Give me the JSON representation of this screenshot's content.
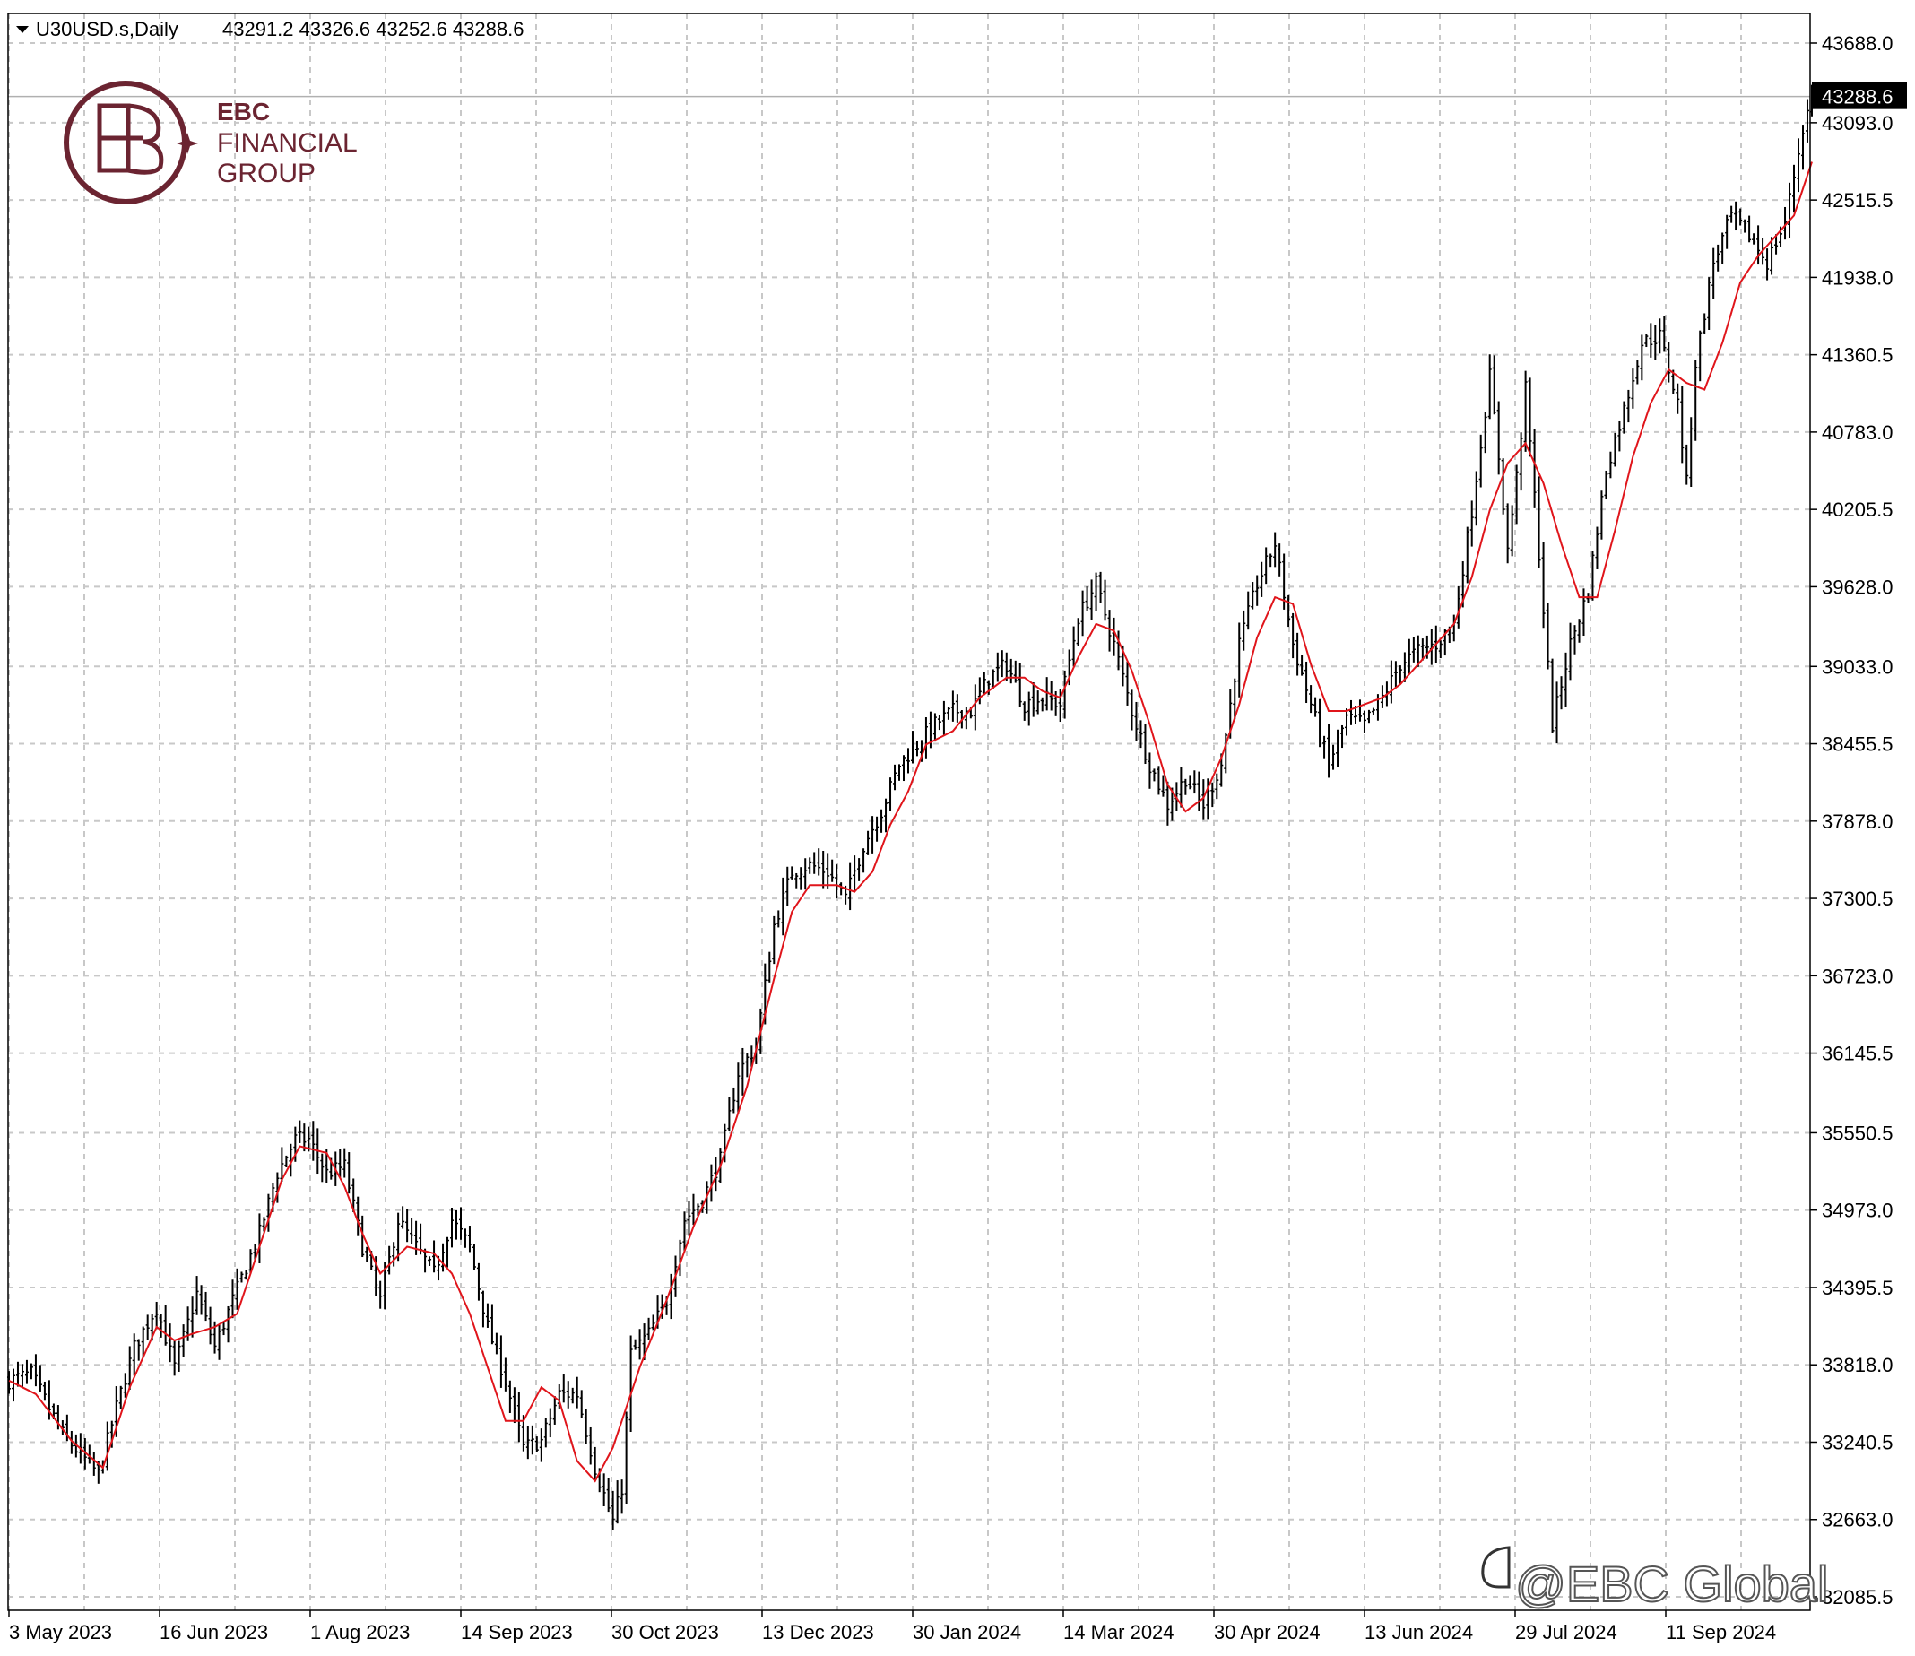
{
  "header": {
    "symbol": "U30USD.s,Daily",
    "ohlc": "43291.2 43326.6 43252.6 43288.6"
  },
  "logo": {
    "line1": "EBC",
    "line2": "FINANCIAL",
    "line3": "GROUP",
    "color": "#6b2431"
  },
  "watermark": "@EBC Global",
  "colors": {
    "bars": "#000000",
    "ma_line": "#e0151b",
    "grid": "#c8c8c8",
    "price_label_bg": "#000000",
    "price_label_text": "#ffffff"
  },
  "chart_data": {
    "type": "line",
    "chart_style": "ohlc-bars",
    "current_price": 43288.6,
    "current_price_label": "43288.6",
    "y_ticks": [
      "43688.0",
      "43093.0",
      "42515.5",
      "41938.0",
      "41360.5",
      "40783.0",
      "40205.5",
      "39628.0",
      "39033.0",
      "38455.5",
      "37878.0",
      "37300.5",
      "36723.0",
      "36145.5",
      "35550.5",
      "34973.0",
      "34395.5",
      "33818.0",
      "33240.5",
      "32663.0",
      "32085.5"
    ],
    "x_ticks": [
      "3 May 2023",
      "16 Jun 2023",
      "1 Aug 2023",
      "14 Sep 2023",
      "30 Oct 2023",
      "13 Dec 2023",
      "30 Jan 2024",
      "14 Mar 2024",
      "30 Apr 2024",
      "13 Jun 2024",
      "29 Jul 2024",
      "11 Sep 2024"
    ],
    "grid": true,
    "price_anchors": [
      [
        0,
        33700
      ],
      [
        5,
        33750
      ],
      [
        12,
        33300
      ],
      [
        16,
        33150
      ],
      [
        20,
        33000
      ],
      [
        24,
        33500
      ],
      [
        28,
        33950
      ],
      [
        33,
        34250
      ],
      [
        37,
        33800
      ],
      [
        42,
        34350
      ],
      [
        46,
        33950
      ],
      [
        50,
        34300
      ],
      [
        56,
        34800
      ],
      [
        60,
        35250
      ],
      [
        64,
        35500
      ],
      [
        67,
        35500
      ],
      [
        71,
        35250
      ],
      [
        75,
        35300
      ],
      [
        79,
        34700
      ],
      [
        83,
        34300
      ],
      [
        87,
        34900
      ],
      [
        91,
        34700
      ],
      [
        95,
        34500
      ],
      [
        99,
        34900
      ],
      [
        103,
        34700
      ],
      [
        107,
        34100
      ],
      [
        111,
        33700
      ],
      [
        115,
        33200
      ],
      [
        119,
        33250
      ],
      [
        123,
        33600
      ],
      [
        127,
        33600
      ],
      [
        131,
        33050
      ],
      [
        135,
        32650
      ],
      [
        137,
        32900
      ],
      [
        139,
        33900
      ],
      [
        143,
        34050
      ],
      [
        147,
        34300
      ],
      [
        151,
        34900
      ],
      [
        155,
        35050
      ],
      [
        159,
        35350
      ],
      [
        163,
        36000
      ],
      [
        167,
        36200
      ],
      [
        171,
        37100
      ],
      [
        175,
        37500
      ],
      [
        179,
        37550
      ],
      [
        183,
        37500
      ],
      [
        187,
        37300
      ],
      [
        191,
        37700
      ],
      [
        195,
        37950
      ],
      [
        199,
        38300
      ],
      [
        203,
        38450
      ],
      [
        207,
        38600
      ],
      [
        211,
        38700
      ],
      [
        215,
        38700
      ],
      [
        219,
        38950
      ],
      [
        223,
        39050
      ],
      [
        227,
        38750
      ],
      [
        231,
        38800
      ],
      [
        235,
        38750
      ],
      [
        239,
        39400
      ],
      [
        243,
        39650
      ],
      [
        247,
        39200
      ],
      [
        251,
        38700
      ],
      [
        255,
        38300
      ],
      [
        259,
        38000
      ],
      [
        263,
        38200
      ],
      [
        267,
        38000
      ],
      [
        271,
        38300
      ],
      [
        275,
        39200
      ],
      [
        279,
        39650
      ],
      [
        283,
        39950
      ],
      [
        287,
        39200
      ],
      [
        291,
        38750
      ],
      [
        295,
        38300
      ],
      [
        299,
        38650
      ],
      [
        303,
        38600
      ],
      [
        307,
        38800
      ],
      [
        311,
        39050
      ],
      [
        315,
        39150
      ],
      [
        319,
        39200
      ],
      [
        323,
        39350
      ],
      [
        327,
        40200
      ],
      [
        331,
        41200
      ],
      [
        333,
        40600
      ],
      [
        335,
        39900
      ],
      [
        337,
        40450
      ],
      [
        339,
        41100
      ],
      [
        341,
        40300
      ],
      [
        345,
        38600
      ],
      [
        349,
        39200
      ],
      [
        353,
        39600
      ],
      [
        357,
        40500
      ],
      [
        361,
        40950
      ],
      [
        365,
        41450
      ],
      [
        369,
        41500
      ],
      [
        373,
        41000
      ],
      [
        375,
        40400
      ],
      [
        377,
        41300
      ],
      [
        381,
        42050
      ],
      [
        385,
        42400
      ],
      [
        389,
        42250
      ],
      [
        393,
        42050
      ],
      [
        397,
        42350
      ],
      [
        401,
        43050
      ],
      [
        403,
        43290
      ]
    ],
    "ma_anchors": [
      [
        0,
        33700
      ],
      [
        6,
        33600
      ],
      [
        14,
        33250
      ],
      [
        21,
        33050
      ],
      [
        27,
        33650
      ],
      [
        33,
        34100
      ],
      [
        37,
        34000
      ],
      [
        41,
        34050
      ],
      [
        46,
        34100
      ],
      [
        51,
        34200
      ],
      [
        56,
        34700
      ],
      [
        61,
        35200
      ],
      [
        65,
        35450
      ],
      [
        71,
        35400
      ],
      [
        75,
        35150
      ],
      [
        79,
        34800
      ],
      [
        83,
        34500
      ],
      [
        89,
        34700
      ],
      [
        95,
        34650
      ],
      [
        99,
        34500
      ],
      [
        103,
        34200
      ],
      [
        107,
        33800
      ],
      [
        111,
        33400
      ],
      [
        115,
        33400
      ],
      [
        119,
        33650
      ],
      [
        123,
        33550
      ],
      [
        127,
        33100
      ],
      [
        131,
        32950
      ],
      [
        135,
        33200
      ],
      [
        141,
        33800
      ],
      [
        147,
        34300
      ],
      [
        153,
        34850
      ],
      [
        159,
        35300
      ],
      [
        165,
        35900
      ],
      [
        171,
        36700
      ],
      [
        175,
        37200
      ],
      [
        179,
        37400
      ],
      [
        185,
        37400
      ],
      [
        189,
        37350
      ],
      [
        193,
        37500
      ],
      [
        197,
        37850
      ],
      [
        201,
        38100
      ],
      [
        205,
        38450
      ],
      [
        211,
        38550
      ],
      [
        217,
        38800
      ],
      [
        223,
        38950
      ],
      [
        227,
        38950
      ],
      [
        231,
        38850
      ],
      [
        235,
        38800
      ],
      [
        239,
        39100
      ],
      [
        243,
        39350
      ],
      [
        247,
        39300
      ],
      [
        251,
        39000
      ],
      [
        255,
        38600
      ],
      [
        259,
        38150
      ],
      [
        263,
        37950
      ],
      [
        267,
        38050
      ],
      [
        271,
        38350
      ],
      [
        275,
        38750
      ],
      [
        279,
        39250
      ],
      [
        283,
        39550
      ],
      [
        287,
        39500
      ],
      [
        291,
        39050
      ],
      [
        295,
        38700
      ],
      [
        299,
        38700
      ],
      [
        303,
        38750
      ],
      [
        307,
        38800
      ],
      [
        311,
        38900
      ],
      [
        315,
        39050
      ],
      [
        319,
        39200
      ],
      [
        323,
        39350
      ],
      [
        327,
        39700
      ],
      [
        331,
        40200
      ],
      [
        335,
        40550
      ],
      [
        339,
        40700
      ],
      [
        343,
        40400
      ],
      [
        347,
        39950
      ],
      [
        351,
        39550
      ],
      [
        355,
        39550
      ],
      [
        359,
        40050
      ],
      [
        363,
        40600
      ],
      [
        367,
        41000
      ],
      [
        371,
        41250
      ],
      [
        375,
        41150
      ],
      [
        379,
        41100
      ],
      [
        383,
        41450
      ],
      [
        387,
        41900
      ],
      [
        391,
        42100
      ],
      [
        395,
        42250
      ],
      [
        399,
        42400
      ],
      [
        403,
        42800
      ]
    ]
  }
}
